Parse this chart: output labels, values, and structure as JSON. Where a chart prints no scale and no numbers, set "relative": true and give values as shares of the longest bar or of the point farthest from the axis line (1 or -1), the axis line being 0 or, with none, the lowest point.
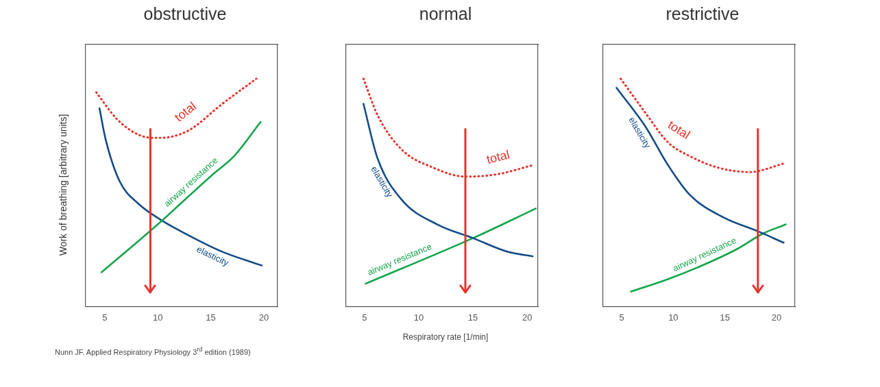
{
  "chart_data": [
    {
      "type": "line",
      "title": "obstructive",
      "ylabel": "Work of breathing [arbitrary units]",
      "relative": true,
      "xlim": [
        3.2,
        21.3
      ],
      "xticks": [
        5,
        10,
        15,
        20
      ],
      "tick_labels": "x",
      "grid": false,
      "legend": false,
      "marker": "none",
      "annotations": [
        "Nunn JF. Applied Respiratory Physiology 3$^{rd}$ edition (1989)"
      ],
      "ref_lines": [
        {
          "axis": "x",
          "value": 9.3,
          "color": "#e5332a"
        }
      ],
      "series": [
        {
          "name": "total",
          "color": "#e5332a",
          "line_style": "dotted",
          "x": [
            4.2,
            6.2,
            8.4,
            10.1,
            12.8,
            16.1,
            19.3
          ],
          "values": [
            0.94,
            0.82,
            0.75,
            0.74,
            0.77,
            0.89,
            1.0
          ]
        },
        {
          "name": "airway resistance",
          "color": "#13a54a",
          "line_style": "solid",
          "x": [
            4.7,
            9.5,
            15.2,
            17.2,
            19.7
          ],
          "values": [
            0.15,
            0.34,
            0.58,
            0.66,
            0.81
          ]
        },
        {
          "name": "elasticity",
          "color": "#134b87",
          "line_style": "solid",
          "x": [
            4.5,
            5.1,
            6.4,
            8.2,
            10.3,
            13.0,
            16.1,
            19.8
          ],
          "values": [
            0.87,
            0.73,
            0.55,
            0.45,
            0.38,
            0.31,
            0.24,
            0.18
          ]
        }
      ]
    },
    {
      "type": "line",
      "title": "normal",
      "xlabel": "Respiratory rate [1/min]",
      "relative": true,
      "xlim": [
        3.3,
        21.0
      ],
      "xticks": [
        5,
        10,
        15,
        20
      ],
      "tick_labels": "x",
      "grid": false,
      "legend": false,
      "marker": "none",
      "ref_lines": [
        {
          "axis": "x",
          "value": 14.3,
          "color": "#e5332a"
        }
      ],
      "series": [
        {
          "name": "total",
          "color": "#e5332a",
          "line_style": "dotted",
          "x": [
            4.9,
            6.2,
            8.4,
            11.3,
            14.3,
            17.2,
            20.5
          ],
          "values": [
            1.0,
            0.84,
            0.69,
            0.61,
            0.57,
            0.58,
            0.62
          ]
        },
        {
          "name": "elasticity",
          "color": "#134b87",
          "line_style": "solid",
          "x": [
            4.9,
            6.2,
            8.4,
            11.7,
            15.0,
            18.2,
            20.5
          ],
          "values": [
            0.89,
            0.65,
            0.47,
            0.36,
            0.3,
            0.24,
            0.22
          ]
        },
        {
          "name": "airway resistance",
          "color": "#13a54a",
          "line_style": "solid",
          "x": [
            5.1,
            15.0,
            20.8
          ],
          "values": [
            0.1,
            0.3,
            0.43
          ]
        }
      ]
    },
    {
      "type": "line",
      "title": "restrictive",
      "relative": true,
      "xlim": [
        3.2,
        21.8
      ],
      "xticks": [
        5,
        10,
        15,
        20
      ],
      "tick_labels": "x",
      "grid": false,
      "legend": false,
      "marker": "none",
      "ref_lines": [
        {
          "axis": "x",
          "value": 18.2,
          "color": "#e5332a"
        }
      ],
      "series": [
        {
          "name": "elasticity",
          "color": "#134b87",
          "line_style": "solid",
          "x": [
            4.5,
            7.3,
            9.5,
            11.6,
            14.9,
            18.2,
            20.7
          ],
          "values": [
            0.96,
            0.79,
            0.62,
            0.49,
            0.39,
            0.33,
            0.28
          ]
        },
        {
          "name": "total",
          "color": "#e5332a",
          "line_style": "dotted",
          "x": [
            4.9,
            7.3,
            9.5,
            11.6,
            14.3,
            17.4,
            20.9
          ],
          "values": [
            1.0,
            0.85,
            0.72,
            0.66,
            0.61,
            0.59,
            0.63
          ]
        },
        {
          "name": "airway resistance",
          "color": "#13a54a",
          "line_style": "solid",
          "x": [
            5.9,
            9.5,
            12.8,
            16.1,
            18.7,
            20.9
          ],
          "values": [
            0.065,
            0.12,
            0.18,
            0.25,
            0.32,
            0.36
          ]
        }
      ]
    }
  ]
}
